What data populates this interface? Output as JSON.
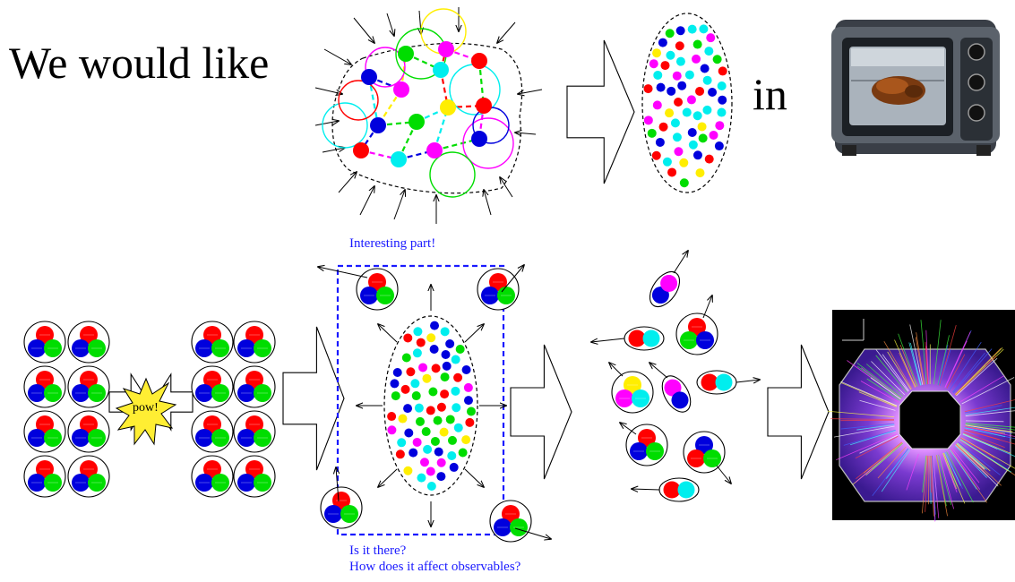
{
  "headline": {
    "prefix": "We would like",
    "suffix": "in"
  },
  "pow_label": "pow!",
  "interesting_label": "Interesting part!",
  "questions": {
    "line1": "Is it there?",
    "line2": "How does it affect observables?"
  },
  "icons": {
    "oven": "toaster-oven-with-roast-chicken",
    "detector": "particle-detector-event-display",
    "arrow": "hollow-block-arrow",
    "explosion": "starburst-explosion"
  },
  "colors": {
    "red": "#ff0000",
    "blue": "#0000dd",
    "green": "#00dd00",
    "yellow": "#ffee00",
    "cyan": "#00eeee",
    "magenta": "#ff00ff",
    "note_blue": "#1a1aff",
    "star_yellow": "#ffee33"
  }
}
